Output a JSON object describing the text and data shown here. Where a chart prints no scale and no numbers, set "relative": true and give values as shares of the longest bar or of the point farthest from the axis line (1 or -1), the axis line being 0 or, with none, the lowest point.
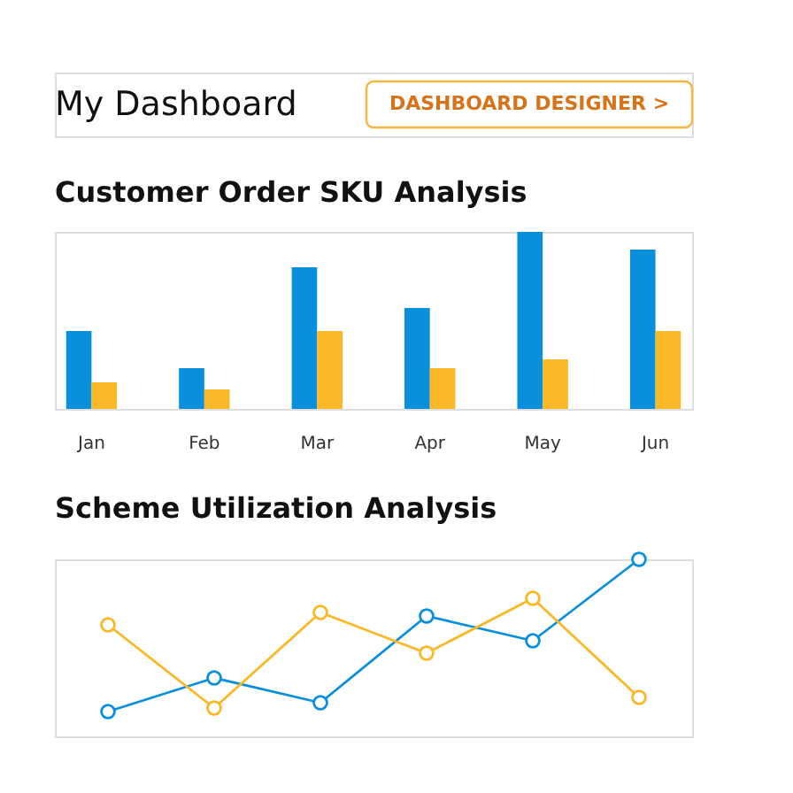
{
  "chart_data": [
    {
      "type": "other",
      "title": "My Dashboard",
      "annotations": [
        "DASHBOARD DESIGNER >"
      ]
    },
    {
      "type": "bar",
      "title": "Customer Order SKU Analysis",
      "relative": true,
      "categories": [
        "Jan",
        "Feb",
        "Mar",
        "Apr",
        "May",
        "Jun"
      ],
      "tick_labels": "x",
      "legend": false,
      "series": [
        {
          "color": "#0a8fdc",
          "values": [
            0.44,
            0.23,
            0.8,
            0.57,
            1.0,
            0.9
          ]
        },
        {
          "color": "#fbb826",
          "values": [
            0.15,
            0.11,
            0.44,
            0.23,
            0.28,
            0.44
          ]
        }
      ]
    },
    {
      "type": "line",
      "title": "Scheme Utilization Analysis",
      "relative": true,
      "categories": [
        null,
        null,
        null,
        null,
        null,
        null
      ],
      "tick_labels": false,
      "legend": false,
      "marker": "circle",
      "line_style": "solid",
      "series": [
        {
          "color": "#0a8fdc",
          "values": [
            0.14,
            0.33,
            0.19,
            0.68,
            0.54,
            1.0
          ]
        },
        {
          "color": "#fbb826",
          "values": [
            0.63,
            0.16,
            0.7,
            0.47,
            0.78,
            0.22
          ]
        }
      ]
    }
  ]
}
